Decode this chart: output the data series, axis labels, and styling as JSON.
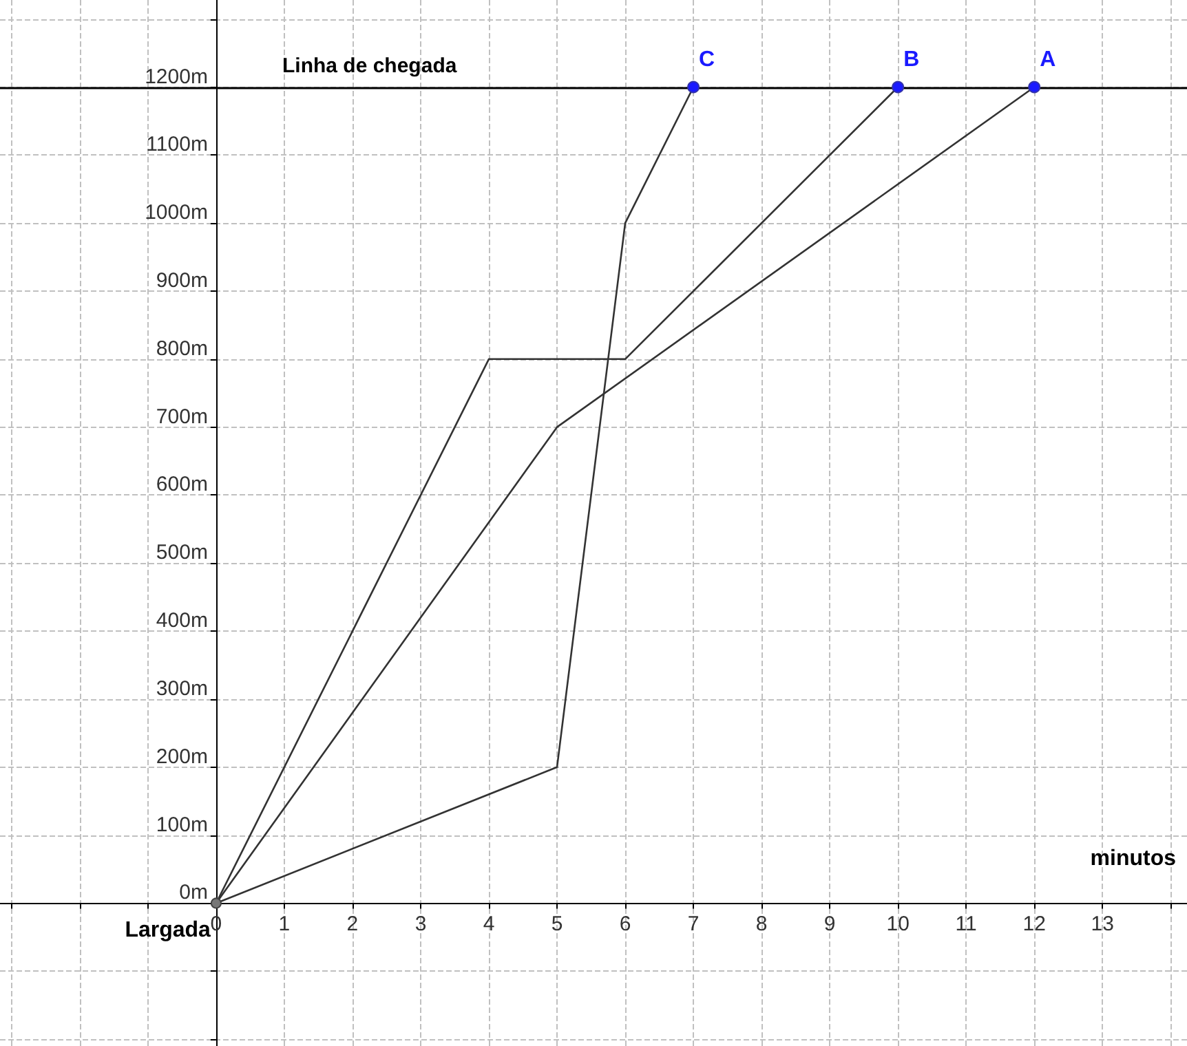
{
  "chart_data": {
    "type": "line",
    "xlabel": "minutos",
    "series": [
      {
        "color": "#333333",
        "x": [
          0,
          5,
          12
        ],
        "values": [
          0,
          700,
          1200
        ]
      },
      {
        "color": "#333333",
        "x": [
          0,
          4,
          6,
          10
        ],
        "values": [
          0,
          800,
          800,
          1200
        ]
      },
      {
        "color": "#333333",
        "x": [
          0,
          5,
          6,
          7
        ],
        "values": [
          0,
          200,
          1000,
          1200
        ]
      }
    ],
    "xlim": [
      -3.17,
      14.24
    ],
    "ylim": [
      -210,
      1328
    ],
    "xticks": [
      {
        "value": -3,
        "label": null
      },
      {
        "value": -2,
        "label": null
      },
      {
        "value": -1,
        "label": null
      },
      0,
      1,
      2,
      3,
      4,
      5,
      6,
      7,
      8,
      9,
      10,
      11,
      12,
      13,
      {
        "value": 14,
        "label": null
      }
    ],
    "yticks": [
      {
        "value": -200,
        "label": null
      },
      {
        "value": -100,
        "label": null
      },
      {
        "value": 0,
        "label": "0m"
      },
      {
        "value": 100,
        "label": "100m"
      },
      {
        "value": 200,
        "label": "200m"
      },
      {
        "value": 300,
        "label": "300m"
      },
      {
        "value": 400,
        "label": "400m"
      },
      {
        "value": 500,
        "label": "500m"
      },
      {
        "value": 600,
        "label": "600m"
      },
      {
        "value": 700,
        "label": "700m"
      },
      {
        "value": 800,
        "label": "800m"
      },
      {
        "value": 900,
        "label": "900m"
      },
      {
        "value": 1000,
        "label": "1000m"
      },
      {
        "value": 1100,
        "label": "1100m"
      },
      {
        "value": 1200,
        "label": "1200m"
      },
      {
        "value": 1300,
        "label": null
      }
    ],
    "ref_lines": [
      {
        "axis": "y",
        "value": 1200,
        "label": "Linha de chegada",
        "color": "#000000"
      }
    ],
    "annotations": [
      {
        "text": "A",
        "x": 12,
        "y": 1200
      },
      {
        "text": "B",
        "x": 10,
        "y": 1200
      },
      {
        "text": "C",
        "x": 7,
        "y": 1200
      },
      {
        "text": "Largada",
        "x": 0,
        "y": 0
      }
    ],
    "grid": true,
    "line_style": "solid"
  }
}
